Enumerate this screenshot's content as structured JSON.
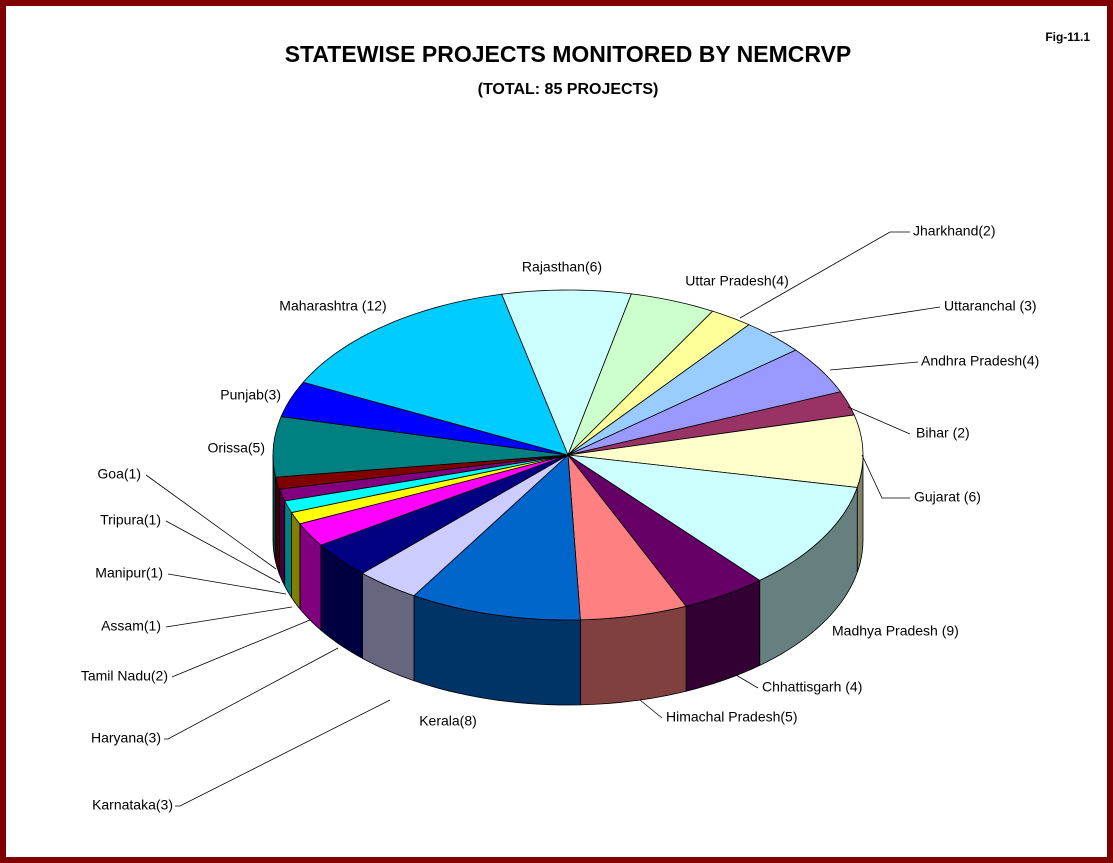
{
  "chart_data": {
    "type": "pie3d",
    "title": "STATEWISE PROJECTS MONITORED BY NEMCRVP",
    "subtitle": "(TOTAL: 85 PROJECTS)",
    "figure_label": "Fig-11.1",
    "categories": [
      "Rajasthan(6)",
      "Uttar Pradesh(4)",
      "Jharkhand(2)",
      "Uttaranchal (3)",
      "Andhra Pradesh(4)",
      "Bihar (2)",
      "Gujarat (6)",
      "Madhya Pradesh (9)",
      "Chhattisgarh (4)",
      "Himachal Pradesh(5)",
      "Kerala(8)",
      "Karnataka(3)",
      "Haryana(3)",
      "Tamil Nadu(2)",
      "Assam(1)",
      "Manipur(1)",
      "Tripura(1)",
      "Goa(1)",
      "Orissa(5)",
      "Punjab(3)",
      "Maharashtra (12)"
    ],
    "values": [
      6,
      4,
      2,
      3,
      4,
      2,
      6,
      9,
      4,
      5,
      8,
      3,
      3,
      2,
      1,
      1,
      1,
      1,
      5,
      3,
      12
    ],
    "colors": [
      "#ccffff",
      "#ccffcc",
      "#ffff99",
      "#99ccff",
      "#9999ff",
      "#993366",
      "#ffffcc",
      "#ccffff",
      "#660066",
      "#ff8080",
      "#0066cc",
      "#ccccff",
      "#000080",
      "#ff00ff",
      "#ffff00",
      "#00ffff",
      "#800080",
      "#800000",
      "#008080",
      "#0000ff",
      "#00ccff"
    ]
  }
}
